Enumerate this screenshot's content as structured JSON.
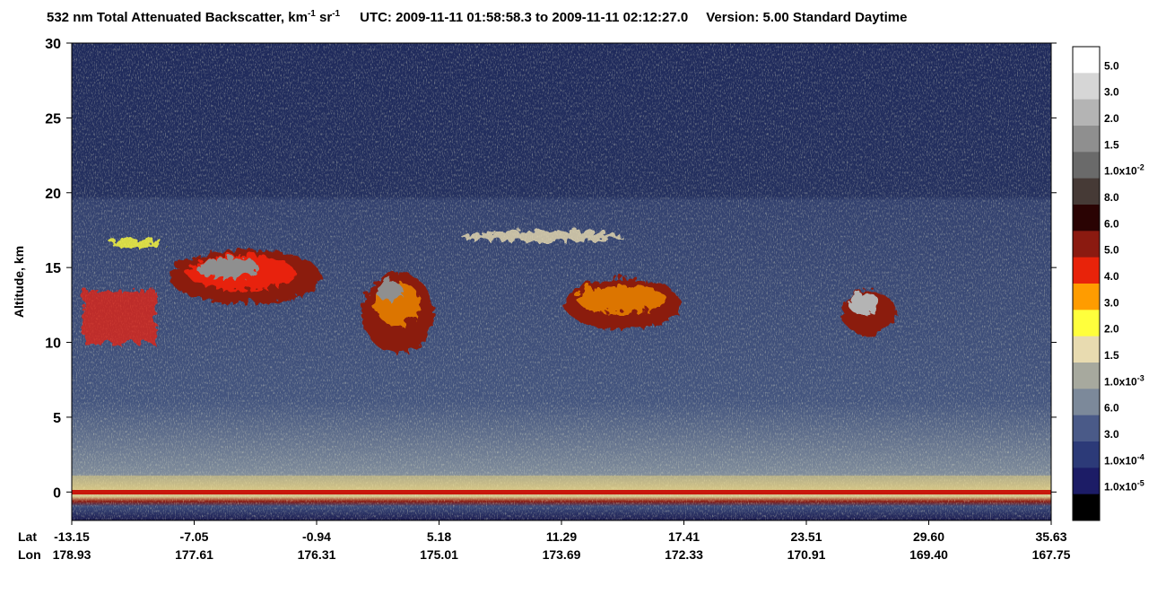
{
  "chart_data": {
    "type": "curtain",
    "title": [
      "532 nm Total Attenuated Backscatter, km",
      "-1",
      " sr",
      "-1"
    ],
    "utc": "UTC:  2009-11-11 01:58:58.3  to  2009-11-11 02:12:27.0",
    "version": "Version: 5.00  Standard  Daytime",
    "ylabel": "Altitude, km",
    "ylim": [
      -1.9,
      30
    ],
    "yticks": [
      0,
      5,
      10,
      15,
      20,
      25,
      30
    ],
    "x_rows": [
      {
        "name": "Lat",
        "labels": [
          "-13.15",
          "-7.05",
          "-0.94",
          "5.18",
          "11.29",
          "17.41",
          "23.51",
          "29.60",
          "35.63"
        ]
      },
      {
        "name": "Lon",
        "labels": [
          "178.93",
          "177.61",
          "176.31",
          "175.01",
          "173.69",
          "172.33",
          "170.91",
          "169.40",
          "167.75"
        ]
      }
    ],
    "colorbar": {
      "colors": [
        "#ffffff",
        "#d6d6d6",
        "#b4b4b4",
        "#8f8f8f",
        "#6a6a6a",
        "#463a36",
        "#2a0303",
        "#8b1a10",
        "#e8230a",
        "#ff9c00",
        "#ffff3c",
        "#e8dbb0",
        "#a7a99e",
        "#7c899a",
        "#4a5a88",
        "#2c3a78",
        "#1c1c66",
        "#000000"
      ],
      "labels": [
        {
          "text": "5.0"
        },
        {
          "text": "3.0"
        },
        {
          "text": "2.0"
        },
        {
          "text": "1.5"
        },
        {
          "text": "1.0x10",
          "sup": "-2"
        },
        {
          "text": "8.0"
        },
        {
          "text": "6.0"
        },
        {
          "text": "5.0"
        },
        {
          "text": "4.0"
        },
        {
          "text": "3.0"
        },
        {
          "text": "2.0"
        },
        {
          "text": "1.5"
        },
        {
          "text": "1.0x10",
          "sup": "-3"
        },
        {
          "text": "6.0"
        },
        {
          "text": "3.0"
        },
        {
          "text": "1.0x10",
          "sup": "-4"
        },
        {
          "text": "1.0x10",
          "sup": "-5"
        }
      ]
    }
  }
}
